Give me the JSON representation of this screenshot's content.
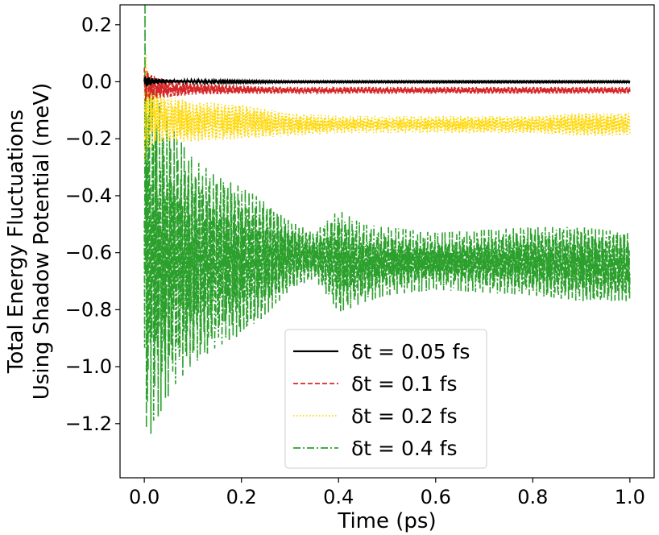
{
  "chart_data": {
    "type": "line",
    "title": "",
    "xlabel": "Time (ps)",
    "ylabel_lines": [
      "Total Energy Fluctuations",
      "Using Shadow Potential (meV)"
    ],
    "xlim": [
      -0.05,
      1.05
    ],
    "ylim": [
      -1.39,
      0.27
    ],
    "x_ticks": [
      0.0,
      0.2,
      0.4,
      0.6,
      0.8,
      1.0
    ],
    "x_tick_labels": [
      "0.0",
      "0.2",
      "0.4",
      "0.6",
      "0.8",
      "1.0"
    ],
    "y_ticks": [
      0.2,
      0.0,
      -0.2,
      -0.4,
      -0.6,
      -0.8,
      -1.0,
      -1.2
    ],
    "y_tick_labels": [
      "0.2",
      "0.0",
      "−0.2",
      "−0.4",
      "−0.6",
      "−0.8",
      "−1.0",
      "−1.2"
    ],
    "grid": false,
    "legend_position": "lower-center",
    "series": [
      {
        "name": "δt = 0.05 fs",
        "color": "#000000",
        "style": "solid",
        "x": [
          0.0,
          0.02,
          0.05,
          0.1,
          0.2,
          0.3,
          0.4,
          0.5,
          0.6,
          0.7,
          0.8,
          0.9,
          1.0
        ],
        "center": [
          0.0,
          0.002,
          0.002,
          0.001,
          0.0,
          0.0,
          0.0,
          0.0,
          0.0,
          0.0,
          0.0,
          0.0,
          0.0
        ],
        "amplitude": [
          0.02,
          0.01,
          0.006,
          0.004,
          0.003,
          0.002,
          0.002,
          0.002,
          0.002,
          0.002,
          0.002,
          0.002,
          0.002
        ]
      },
      {
        "name": "δt = 0.1 fs",
        "color": "#d62728",
        "style": "dashed",
        "x": [
          0.0,
          0.02,
          0.05,
          0.1,
          0.2,
          0.3,
          0.4,
          0.5,
          0.6,
          0.7,
          0.8,
          0.9,
          1.0
        ],
        "center": [
          -0.01,
          -0.02,
          -0.025,
          -0.025,
          -0.028,
          -0.03,
          -0.03,
          -0.03,
          -0.03,
          -0.03,
          -0.03,
          -0.03,
          -0.03
        ],
        "amplitude": [
          0.06,
          0.04,
          0.03,
          0.02,
          0.015,
          0.012,
          0.012,
          0.012,
          0.012,
          0.012,
          0.012,
          0.012,
          0.012
        ]
      },
      {
        "name": "δt = 0.2 fs",
        "color": "#ffd700",
        "style": "dotted",
        "x": [
          0.0,
          0.02,
          0.05,
          0.1,
          0.2,
          0.3,
          0.4,
          0.5,
          0.6,
          0.7,
          0.8,
          0.9,
          1.0
        ],
        "center": [
          -0.08,
          -0.12,
          -0.13,
          -0.14,
          -0.14,
          -0.15,
          -0.15,
          -0.15,
          -0.15,
          -0.15,
          -0.15,
          -0.15,
          -0.15
        ],
        "amplitude": [
          0.2,
          0.1,
          0.08,
          0.07,
          0.06,
          0.04,
          0.03,
          0.03,
          0.03,
          0.03,
          0.03,
          0.04,
          0.04
        ]
      },
      {
        "name": "δt = 0.4 fs",
        "color": "#2ca02c",
        "style": "dashdot",
        "x": [
          0.0,
          0.01,
          0.03,
          0.06,
          0.1,
          0.15,
          0.2,
          0.25,
          0.3,
          0.35,
          0.4,
          0.45,
          0.5,
          0.6,
          0.7,
          0.8,
          0.9,
          1.0
        ],
        "center": [
          -0.5,
          -0.6,
          -0.62,
          -0.62,
          -0.63,
          -0.63,
          -0.63,
          -0.62,
          -0.61,
          -0.61,
          -0.63,
          -0.64,
          -0.63,
          -0.63,
          -0.63,
          -0.63,
          -0.64,
          -0.65
        ],
        "amplitude": [
          0.85,
          0.65,
          0.55,
          0.45,
          0.36,
          0.3,
          0.26,
          0.2,
          0.12,
          0.08,
          0.18,
          0.14,
          0.12,
          0.1,
          0.11,
          0.12,
          0.13,
          0.12
        ]
      }
    ]
  }
}
